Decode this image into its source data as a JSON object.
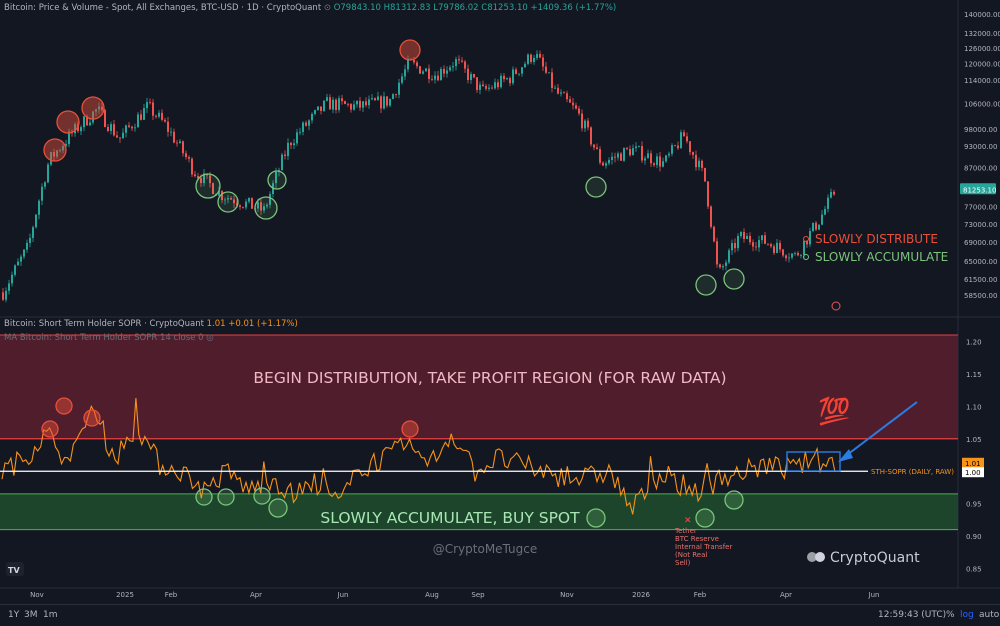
{
  "header": {
    "title": "Bitcoin: Price & Volume - Spot, All Exchanges, BTC-USD · 1D · CryptoQuant",
    "ohlc": "O79843.10 H81312.83 L79786.02 C81253.10 +1409.36 (+1.77%)",
    "sopr_title": "Bitcoin: Short Term Holder SOPR · CryptoQuant",
    "sopr_value": "1.01 +0.01 (+1.17%)",
    "ma_title": "MA Bitcoin: Short Term Holder SOPR 14 close 0"
  },
  "labels": {
    "slowly_distribute": "SLOWLY DISTRIBUTE",
    "slowly_accumulate": "SLOWLY ACCUMULATE",
    "distribution_region": "BEGIN DISTRIBUTION, TAKE PROFIT REGION (FOR RAW DATA)",
    "accumulate_region": "SLOWLY ACCUMULATE, BUY SPOT",
    "watermark": "@CryptoMeTugce",
    "brand": "CryptoQuant",
    "sth_line": "STH-SOPR (DAILY, RAW)",
    "tether_note": [
      "Tether",
      "BTC Reserve",
      "Internal Transfer",
      "(Not Real",
      "Sell)"
    ],
    "emoji_100": "💯",
    "tv_logo": "TV"
  },
  "price_badge": "81253.10",
  "sopr_badges": [
    "1.01",
    "1.00"
  ],
  "bottom": {
    "ranges": [
      "1Y",
      "3M",
      "1m"
    ],
    "time": "12:59:43 (UTC)",
    "pct": "%",
    "log": "log",
    "auto": "auto"
  },
  "colors": {
    "bg": "#131722",
    "candle_up": "#26a69a",
    "candle_down": "#ef5350",
    "sopr_line": "#f7931a",
    "dist_zone": "#5c1f2e",
    "acc_zone": "#1e4a2c",
    "red_line": "#e84040",
    "green_line": "#4caf50",
    "circle_red": "#e8503a",
    "circle_green": "#7cc47c",
    "arrow": "#2a7de1"
  },
  "chart_data": [
    {
      "type": "line",
      "title": "Bitcoin: Price & Volume - Spot, All Exchanges, BTC-USD",
      "ylabel": "",
      "xlabel": "",
      "ylim": [
        55000,
        140000
      ],
      "y_ticks": [
        140000,
        132000,
        126000,
        120000,
        114000,
        106000,
        98000,
        93000,
        87000,
        77000,
        73000,
        69000,
        65000,
        61500,
        58500
      ],
      "x_ticks": [
        "Nov",
        "2025",
        "Feb",
        "Apr",
        "Jun",
        "Aug",
        "Sep",
        "Nov",
        "2026",
        "Feb",
        "Apr",
        "Jun"
      ],
      "x": [
        "2024-10-15",
        "2024-11-01",
        "2024-11-15",
        "2024-12-01",
        "2024-12-17",
        "2025-01-01",
        "2025-01-20",
        "2025-02-01",
        "2025-02-20",
        "2025-03-10",
        "2025-04-08",
        "2025-04-25",
        "2025-05-20",
        "2025-06-10",
        "2025-07-01",
        "2025-07-14",
        "2025-08-01",
        "2025-08-14",
        "2025-09-01",
        "2025-09-20",
        "2025-10-06",
        "2025-10-20",
        "2025-11-04",
        "2025-11-20",
        "2025-12-10",
        "2026-01-01",
        "2026-01-14",
        "2026-01-28",
        "2026-02-06",
        "2026-02-20",
        "2026-03-10",
        "2026-03-30",
        "2026-04-15",
        "2026-04-26"
      ],
      "values": [
        59000,
        68000,
        89000,
        97000,
        104000,
        95000,
        105000,
        99000,
        86000,
        80000,
        76000,
        94000,
        106000,
        105000,
        107000,
        120000,
        116000,
        121000,
        110000,
        115000,
        124000,
        110000,
        103000,
        88000,
        92000,
        88000,
        96000,
        84000,
        62000,
        70000,
        69000,
        66000,
        74000,
        81253
      ],
      "annotations": [
        "SLOWLY DISTRIBUTE",
        "SLOWLY ACCUMULATE"
      ]
    },
    {
      "type": "line",
      "title": "Bitcoin: Short Term Holder SOPR",
      "ylim": [
        0.82,
        1.23
      ],
      "y_ticks": [
        1.2,
        1.15,
        1.1,
        1.05,
        1.0,
        0.95,
        0.9,
        0.85
      ],
      "series": [
        {
          "name": "STH-SOPR (DAILY, RAW)",
          "values": [
            1.0,
            1.02,
            1.06,
            1.01,
            1.1,
            1.02,
            1.07,
            1.01,
            1.0,
            0.97,
            1.0,
            0.97,
            0.99,
            0.96,
            0.98,
            0.95,
            1.01,
            1.02,
            1.04,
            1.01,
            1.06,
            1.0,
            1.02,
            1.01,
            1.0,
            0.99,
            0.99,
            1.0,
            0.94,
            0.99,
            0.98,
            0.97,
            0.99,
            1.0,
            1.01,
            1.0,
            1.02,
            1.01
          ]
        }
      ],
      "zones": [
        {
          "label": "BEGIN DISTRIBUTION, TAKE PROFIT REGION (FOR RAW DATA)",
          "range": [
            1.05,
            1.21
          ]
        },
        {
          "label": "SLOWLY ACCUMULATE, BUY SPOT",
          "range": [
            0.91,
            0.965
          ]
        }
      ],
      "reference_line": 1.0
    }
  ]
}
